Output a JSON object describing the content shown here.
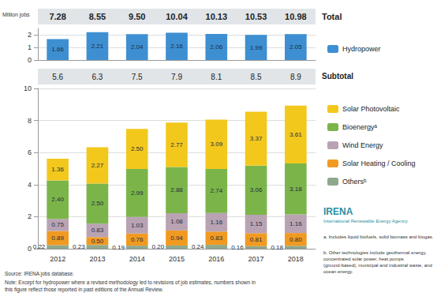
{
  "chart_data": [
    {
      "type": "bar",
      "y_label": "Million jobs",
      "categories": [
        null,
        null,
        null,
        null,
        null,
        null,
        null
      ],
      "ylim": [
        0,
        2.5
      ],
      "yticks": [
        0,
        1,
        2
      ],
      "grid": true,
      "data_labels": true,
      "series": [
        {
          "name": "Hydropower",
          "color": "#3d8fd1",
          "values": [
            1.66,
            2.21,
            2.04,
            2.16,
            2.06,
            1.99,
            2.05
          ]
        }
      ],
      "totals": {
        "label": "Total",
        "values": [
          7.28,
          8.55,
          9.5,
          10.04,
          10.13,
          10.53,
          10.98
        ],
        "value_labels": [
          "7.28",
          "8.55",
          "9.50",
          "10.04",
          "10.13",
          "10.53",
          "10.98"
        ]
      }
    },
    {
      "type": "bar",
      "categories": [
        "2012",
        "2013",
        "2014",
        "2015",
        "2016",
        "2017",
        "2018"
      ],
      "ylim": [
        0,
        10
      ],
      "yticks": [
        0,
        2,
        4,
        6,
        8,
        10
      ],
      "grid": true,
      "stacked": true,
      "data_labels": true,
      "series": [
        {
          "name": "Othersᵇ",
          "color": "#8fa88c",
          "values": [
            0.22,
            0.23,
            0.19,
            0.2,
            0.24,
            0.16,
            0.18
          ],
          "value_labels": [
            "0.22",
            "0.23",
            "0.19",
            "0.20",
            "0.24",
            "0.16",
            "0.18"
          ]
        },
        {
          "name": "Solar Heating / Cooling",
          "color": "#f09a22",
          "values": [
            0.89,
            0.5,
            0.76,
            0.94,
            0.83,
            0.81,
            0.8
          ],
          "value_labels": [
            "0.89",
            "0.50",
            "0.76",
            "0.94",
            "0.83",
            "0.81",
            "0.80"
          ]
        },
        {
          "name": "Wind Energy",
          "color": "#b9a3b3",
          "values": [
            0.75,
            0.83,
            1.03,
            1.08,
            1.16,
            1.15,
            1.16
          ],
          "value_labels": [
            "0.75",
            "0.83",
            "1.03",
            "1.08",
            "1.16",
            "1.15",
            "1.16"
          ]
        },
        {
          "name": "Bioenergyᵃ",
          "color": "#7bb54a",
          "values": [
            2.4,
            2.5,
            2.99,
            2.88,
            2.74,
            3.06,
            3.18
          ],
          "value_labels": [
            "2.40",
            "2.50",
            "2.99",
            "2.88",
            "2.74",
            "3.06",
            "3.18"
          ]
        },
        {
          "name": "Solar Photovoltaic",
          "color": "#f3c81d",
          "values": [
            1.36,
            2.27,
            2.5,
            2.77,
            3.09,
            3.37,
            3.61
          ],
          "value_labels": [
            "1.36",
            "2.27",
            "2.50",
            "2.77",
            "3.09",
            "3.37",
            "3.61"
          ]
        }
      ],
      "subtotals": {
        "label": "Subtotal",
        "values": [
          5.6,
          6.3,
          7.5,
          7.9,
          8.1,
          8.5,
          8.9
        ]
      },
      "footnotes": [
        "a. Includes liquid biofuels, solid biomass and biogas.",
        "b. Other technologies include geothermal energy, concentrated solar power, heat pumps (ground-based), municipal and industrial waste, and ocean energy."
      ],
      "source": "Source: IRENA jobs database.",
      "note": "Note: Except for hydropower where a revised methodology led to revisions of job estimates, numbers shown in this figure reflect those reported in past editions of the Annual Review.",
      "logo": {
        "name": "IRENA",
        "subtitle": "International Renewable Energy Agency"
      }
    }
  ]
}
